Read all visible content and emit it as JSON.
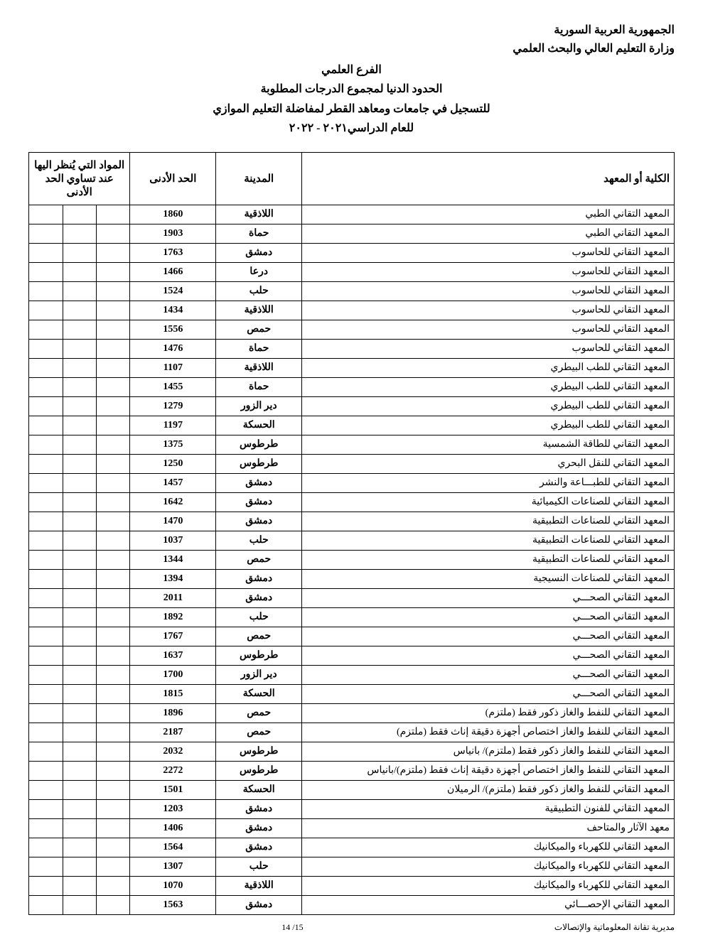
{
  "header": {
    "line1": "الجمهورية العربية السورية",
    "line2": "وزارة التعليم العالي والبحث العلمي"
  },
  "title": {
    "line1": "الفرع العلمي",
    "line2": "الحدود الدنيا لمجموع الدرجات المطلوبة",
    "line3": "للتسجيل في جامعات ومعاهد القطر لمفاضلة التعليم الموازي",
    "line4": "للعام الدراسي٢٠٢١ - ٢٠٢٢"
  },
  "columns": {
    "college": "الكلية أو المعهد",
    "city": "المدينة",
    "min": "الحد الأدنى",
    "subjects": "المواد التي يُنظر اليها عند تساوي الحد الأدنى"
  },
  "rows": [
    {
      "college": "المعهد التقاني الطبي",
      "city": "اللاذقية",
      "min": "1860"
    },
    {
      "college": "المعهد التقاني الطبي",
      "city": "حماة",
      "min": "1903"
    },
    {
      "college": "المعهد التقاني للحاسوب",
      "city": "دمشق",
      "min": "1763"
    },
    {
      "college": "المعهد التقاني للحاسوب",
      "city": "درعا",
      "min": "1466"
    },
    {
      "college": "المعهد التقاني للحاسوب",
      "city": "حلب",
      "min": "1524"
    },
    {
      "college": "المعهد التقاني للحاسوب",
      "city": "اللاذقية",
      "min": "1434"
    },
    {
      "college": "المعهد التقاني للحاسوب",
      "city": "حمص",
      "min": "1556"
    },
    {
      "college": "المعهد التقاني للحاسوب",
      "city": "حماة",
      "min": "1476"
    },
    {
      "college": "المعهد التقاني للطب البيطري",
      "city": "اللاذقية",
      "min": "1107"
    },
    {
      "college": "المعهد التقاني للطب البيطري",
      "city": "حماة",
      "min": "1455"
    },
    {
      "college": "المعهد التقاني للطب البيطري",
      "city": "دير الزور",
      "min": "1279"
    },
    {
      "college": "المعهد التقاني للطب البيطري",
      "city": "الحسكة",
      "min": "1197"
    },
    {
      "college": "المعهد التقاني للطاقة الشمسية",
      "city": "طرطوس",
      "min": "1375"
    },
    {
      "college": "المعهد التقاني للنقل البحري",
      "city": "طرطوس",
      "min": "1250"
    },
    {
      "college": "المعهد التقاني للطبـــاعة والنشر",
      "city": "دمشق",
      "min": "1457"
    },
    {
      "college": "المعهد التقاني للصناعات الكيميائية",
      "city": "دمشق",
      "min": "1642"
    },
    {
      "college": "المعهد التقاني للصناعات التطبيقية",
      "city": "دمشق",
      "min": "1470"
    },
    {
      "college": "المعهد التقاني للصناعات التطبيقية",
      "city": "حلب",
      "min": "1037"
    },
    {
      "college": "المعهد التقاني للصناعات التطبيقية",
      "city": "حمص",
      "min": "1344"
    },
    {
      "college": "المعهد التقاني للصناعات النسيجية",
      "city": "دمشق",
      "min": "1394"
    },
    {
      "college": "المعهد التقاني  الصحـــي",
      "city": "دمشق",
      "min": "2011"
    },
    {
      "college": "المعهد التقاني  الصحـــي",
      "city": "حلب",
      "min": "1892"
    },
    {
      "college": "المعهد التقاني  الصحـــي",
      "city": "حمص",
      "min": "1767"
    },
    {
      "college": "المعهد التقاني الصحـــي",
      "city": "طرطوس",
      "min": "1637"
    },
    {
      "college": "المعهد التقاني الصحـــي",
      "city": "دير الزور",
      "min": "1700"
    },
    {
      "college": "المعهد التقاني الصحـــي",
      "city": "الحسكة",
      "min": "1815"
    },
    {
      "college": "المعهد التقاني للنفط والغاز ذكور فقط (ملتزم)",
      "city": "حمص",
      "min": "1896"
    },
    {
      "college": "المعهد التقاني للنفط والغاز  اختصاص أجهزة دقيقة إناث فقط  (ملتزم)",
      "city": "حمص",
      "min": "2187"
    },
    {
      "college": "المعهد التقاني للنفط والغاز ذكور فقط (ملتزم)/ بانياس",
      "city": "طرطوس",
      "min": "2032"
    },
    {
      "college": "المعهد التقاني للنفط والغاز  اختصاص أجهزة دقيقة إناث فقط (ملتزم)/بانياس",
      "city": "طرطوس",
      "min": "2272"
    },
    {
      "college": "المعهد التقاني للنفط والغاز ذكور فقط (ملتزم)/ الرميلان",
      "city": "الحسكة",
      "min": "1501"
    },
    {
      "college": "المعهد التقاني للفنون التطبيقية",
      "city": "دمشق",
      "min": "1203"
    },
    {
      "college": "معهد الآثار والمتاحف",
      "city": "دمشق",
      "min": "1406"
    },
    {
      "college": "المعهد التقاني للكهرباء والميكانيك",
      "city": "دمشق",
      "min": "1564"
    },
    {
      "college": "المعهد التقاني للكهرباء والميكانيك",
      "city": "حلب",
      "min": "1307"
    },
    {
      "college": "المعهد التقاني للكهرباء والميكانيك",
      "city": "اللاذقية",
      "min": "1070"
    },
    {
      "college": "المعهد التقاني الإحصـــائي",
      "city": "دمشق",
      "min": "1563"
    }
  ],
  "footer": {
    "right": "مديرية تقانة المعلوماتية والإتصالات",
    "page": "14 /15"
  }
}
